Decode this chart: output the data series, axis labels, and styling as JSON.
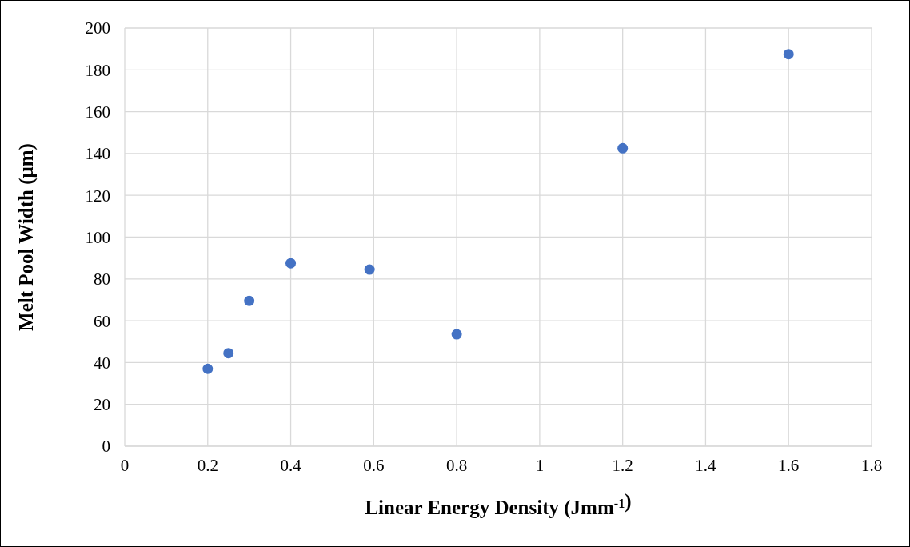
{
  "chart_data": {
    "type": "scatter",
    "xlabel": "Linear Energy Density (Jmm$^{-1}$)",
    "ylabel": "Melt Pool Width (μm)",
    "x": [
      0.2,
      0.25,
      0.3,
      0.4,
      0.59,
      0.8,
      1.2,
      1.6
    ],
    "series": [
      {
        "color": "#4472c4",
        "values": [
          37,
          44.5,
          69.5,
          87.5,
          84.5,
          53.5,
          142.5,
          187.5
        ]
      }
    ],
    "xlim": [
      0,
      1.8
    ],
    "ylim": [
      0,
      200
    ],
    "xticks": [
      0,
      0.2,
      0.4,
      0.6,
      0.8,
      {
        "value": 1,
        "label": "1"
      },
      1.2,
      1.4,
      1.6,
      1.8
    ],
    "yticks": [
      0,
      20,
      40,
      60,
      80,
      100,
      120,
      140,
      160,
      180,
      200
    ],
    "grid": true,
    "marker": "circle"
  }
}
